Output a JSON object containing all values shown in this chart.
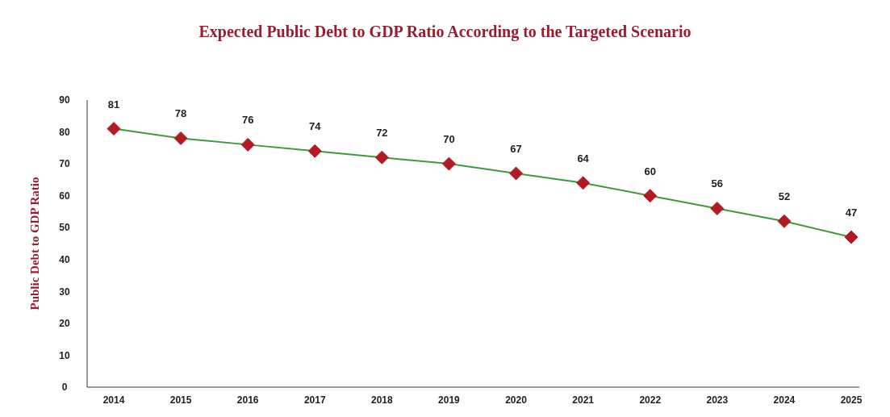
{
  "chart_data": {
    "type": "line",
    "title": "Expected Public Debt to GDP Ratio According to the Targeted Scenario",
    "ylabel": "Public Debt to GDP Ratio",
    "categories": [
      "2014",
      "2015",
      "2016",
      "2017",
      "2018",
      "2019",
      "2020",
      "2021",
      "2022",
      "2023",
      "2024",
      "2025"
    ],
    "series": [
      {
        "color": "#3f9a3a",
        "colors": [
          "#b31b24",
          "#b31b24",
          "#b31b24",
          "#b31b24",
          "#b31b24",
          "#b31b24",
          "#b31b24",
          "#b31b24",
          "#b31b24",
          "#b31b24",
          "#b31b24",
          "#b31b24"
        ],
        "values": [
          81,
          78,
          76,
          74,
          72,
          70,
          67,
          64,
          60,
          56,
          52,
          47
        ]
      }
    ],
    "ylim": [
      0,
      90
    ],
    "yticks": [
      0,
      10,
      20,
      30,
      40,
      50,
      60,
      70,
      80,
      90
    ],
    "grid": false,
    "marker": "diamond",
    "line_style": "solid",
    "data_labels": true
  }
}
